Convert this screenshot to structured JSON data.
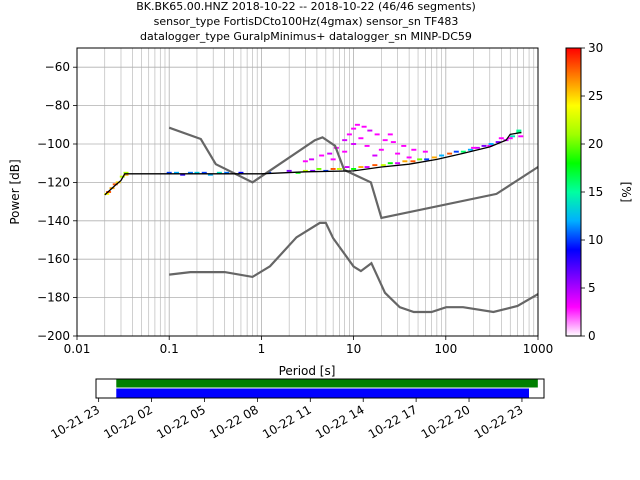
{
  "chart_data": [
    {
      "type": "heatmap",
      "title_lines": [
        "BK.BK65.00.HNZ   2018-10-22 -- 2018-10-22  (46/46 segments)",
        "sensor_type FortisDCto100Hz(4gmax) sensor_sn TF483",
        "datalogger_type GuralpMinimus+ datalogger_sn MINP-DC59"
      ],
      "xlabel": "Period [s]",
      "ylabel": "Power [dB]",
      "xscale": "log",
      "xlim": [
        0.01,
        1000
      ],
      "ylim": [
        -200,
        -50
      ],
      "grid": true,
      "x_tick_labels": [
        "0.01",
        "0.1",
        "1",
        "10",
        "100",
        "1000"
      ],
      "y_tick_values": [
        -200,
        -180,
        -160,
        -140,
        -120,
        -100,
        -80,
        -60
      ],
      "y_tick_labels": [
        "−200",
        "−180",
        "−160",
        "−140",
        "−120",
        "−100",
        "−80",
        "−60"
      ],
      "colorbar": {
        "label": "[%]",
        "range": [
          0,
          30
        ],
        "tick_values": [
          0,
          5,
          10,
          15,
          20,
          25,
          30
        ],
        "tick_labels": [
          "0",
          "5",
          "10",
          "15",
          "20",
          "25",
          "30"
        ],
        "colors": [
          "#ffffff",
          "#ff00ff",
          "#8000ff",
          "#0000ff",
          "#00b0ff",
          "#00ffa0",
          "#00ff00",
          "#a0ff00",
          "#ffff00",
          "#ff8000",
          "#ff0000"
        ]
      },
      "noise_models": {
        "color": "#666666",
        "high_noise_model": [
          [
            0.1,
            -91.5
          ],
          [
            0.22,
            -97.4
          ],
          [
            0.32,
            -110.5
          ],
          [
            0.8,
            -120
          ],
          [
            3.8,
            -98
          ],
          [
            4.6,
            -96.5
          ],
          [
            6.3,
            -101
          ],
          [
            7.9,
            -113.5
          ],
          [
            15.4,
            -120
          ],
          [
            20,
            -138.5
          ],
          [
            354.8,
            -126
          ],
          [
            1000,
            -112
          ]
        ],
        "low_noise_model": [
          [
            0.1,
            -168
          ],
          [
            0.17,
            -166.7
          ],
          [
            0.4,
            -166.7
          ],
          [
            0.8,
            -169.2
          ],
          [
            1.24,
            -163.7
          ],
          [
            2.4,
            -148.6
          ],
          [
            4.3,
            -141.1
          ],
          [
            5,
            -141.1
          ],
          [
            6,
            -149
          ],
          [
            10,
            -163.8
          ],
          [
            12,
            -166.2
          ],
          [
            15.6,
            -162.1
          ],
          [
            21.9,
            -177.5
          ],
          [
            31.6,
            -185
          ],
          [
            45,
            -187.5
          ],
          [
            70,
            -187.5
          ],
          [
            101,
            -185
          ],
          [
            154,
            -185
          ],
          [
            328,
            -187.5
          ],
          [
            600,
            -184.4
          ],
          [
            1000,
            -178.2
          ]
        ]
      },
      "mode_curve": {
        "color": "#000000",
        "points": [
          [
            0.02,
            -126.5
          ],
          [
            0.026,
            -121.5
          ],
          [
            0.03,
            -119
          ],
          [
            0.033,
            -115.5
          ],
          [
            0.1,
            -115.5
          ],
          [
            0.3,
            -115.5
          ],
          [
            1,
            -115.5
          ],
          [
            3,
            -114.5
          ],
          [
            10,
            -114
          ],
          [
            20,
            -112
          ],
          [
            40,
            -110.5
          ],
          [
            80,
            -108
          ],
          [
            150,
            -105
          ],
          [
            300,
            -101.5
          ],
          [
            450,
            -98
          ],
          [
            500,
            -95
          ],
          [
            660,
            -94
          ]
        ]
      },
      "psd_cells": [
        {
          "period": 0.021,
          "db": -126,
          "pct": 24
        },
        {
          "period": 0.022,
          "db": -125,
          "pct": 28
        },
        {
          "period": 0.024,
          "db": -123,
          "pct": 26
        },
        {
          "period": 0.026,
          "db": -121,
          "pct": 28
        },
        {
          "period": 0.028,
          "db": -120,
          "pct": 25
        },
        {
          "period": 0.031,
          "db": -117,
          "pct": 22
        },
        {
          "period": 0.034,
          "db": -116,
          "pct": 26
        },
        {
          "period": 0.034,
          "db": -115,
          "pct": 21
        },
        {
          "period": 0.1,
          "db": -115,
          "pct": 10
        },
        {
          "period": 0.12,
          "db": -115,
          "pct": 12
        },
        {
          "period": 0.14,
          "db": -116,
          "pct": 8
        },
        {
          "period": 0.17,
          "db": -115,
          "pct": 11
        },
        {
          "period": 0.2,
          "db": -115,
          "pct": 13
        },
        {
          "period": 0.24,
          "db": -115,
          "pct": 10
        },
        {
          "period": 0.28,
          "db": -116,
          "pct": 12
        },
        {
          "period": 0.35,
          "db": -115,
          "pct": 14
        },
        {
          "period": 0.42,
          "db": -115,
          "pct": 11
        },
        {
          "period": 0.6,
          "db": -115,
          "pct": 9
        },
        {
          "period": 1.2,
          "db": -115,
          "pct": 10
        },
        {
          "period": 2.0,
          "db": -114,
          "pct": 6
        },
        {
          "period": 2.5,
          "db": -115,
          "pct": 18
        },
        {
          "period": 3.0,
          "db": -114,
          "pct": 22
        },
        {
          "period": 3.6,
          "db": -114,
          "pct": 6
        },
        {
          "period": 4.2,
          "db": -113,
          "pct": 20
        },
        {
          "period": 5.0,
          "db": -114,
          "pct": 10
        },
        {
          "period": 6.0,
          "db": -113,
          "pct": 28
        },
        {
          "period": 7.0,
          "db": -113,
          "pct": 22
        },
        {
          "period": 8.5,
          "db": -112,
          "pct": 4
        },
        {
          "period": 10,
          "db": -113,
          "pct": 18
        },
        {
          "period": 12,
          "db": -112,
          "pct": 26
        },
        {
          "period": 14,
          "db": -112,
          "pct": 4
        },
        {
          "period": 17,
          "db": -111,
          "pct": 28
        },
        {
          "period": 21,
          "db": -111,
          "pct": 22
        },
        {
          "period": 25,
          "db": -110,
          "pct": 18
        },
        {
          "period": 30,
          "db": -110,
          "pct": 4
        },
        {
          "period": 36,
          "db": -109,
          "pct": 26
        },
        {
          "period": 44,
          "db": -109,
          "pct": 28
        },
        {
          "period": 52,
          "db": -108,
          "pct": 20
        },
        {
          "period": 62,
          "db": -108,
          "pct": 10
        },
        {
          "period": 75,
          "db": -107,
          "pct": 26
        },
        {
          "period": 90,
          "db": -106,
          "pct": 12
        },
        {
          "period": 110,
          "db": -105,
          "pct": 28
        },
        {
          "period": 130,
          "db": -104,
          "pct": 10
        },
        {
          "period": 155,
          "db": -104,
          "pct": 16
        },
        {
          "period": 185,
          "db": -103,
          "pct": 12
        },
        {
          "period": 220,
          "db": -102,
          "pct": 4
        },
        {
          "period": 260,
          "db": -101,
          "pct": 6
        },
        {
          "period": 310,
          "db": -100,
          "pct": 12
        },
        {
          "period": 370,
          "db": -99,
          "pct": 6
        },
        {
          "period": 450,
          "db": -98,
          "pct": 4
        },
        {
          "period": 530,
          "db": -96,
          "pct": 14
        },
        {
          "period": 620,
          "db": -94,
          "pct": 16
        },
        {
          "period": 620,
          "db": -93,
          "pct": 15
        },
        {
          "period": 3.0,
          "db": -109,
          "pct": 3
        },
        {
          "period": 3.5,
          "db": -108,
          "pct": 4
        },
        {
          "period": 4.5,
          "db": -106,
          "pct": 3
        },
        {
          "period": 5.5,
          "db": -105,
          "pct": 4
        },
        {
          "period": 6.5,
          "db": -102,
          "pct": 3
        },
        {
          "period": 8,
          "db": -98,
          "pct": 4
        },
        {
          "period": 9,
          "db": -95,
          "pct": 3
        },
        {
          "period": 10,
          "db": -92,
          "pct": 3
        },
        {
          "period": 11,
          "db": -90,
          "pct": 3
        },
        {
          "period": 13,
          "db": -91,
          "pct": 3
        },
        {
          "period": 15,
          "db": -93,
          "pct": 4
        },
        {
          "period": 18,
          "db": -95,
          "pct": 3
        },
        {
          "period": 22,
          "db": -98,
          "pct": 3
        },
        {
          "period": 27,
          "db": -99,
          "pct": 3
        },
        {
          "period": 35,
          "db": -101,
          "pct": 3
        },
        {
          "period": 45,
          "db": -103,
          "pct": 3
        },
        {
          "period": 12,
          "db": -97,
          "pct": 3
        },
        {
          "period": 14,
          "db": -101,
          "pct": 3
        },
        {
          "period": 20,
          "db": -103,
          "pct": 3
        },
        {
          "period": 8,
          "db": -104,
          "pct": 3
        },
        {
          "period": 6,
          "db": -108,
          "pct": 3
        },
        {
          "period": 17,
          "db": -106,
          "pct": 4
        },
        {
          "period": 30,
          "db": -105,
          "pct": 3
        },
        {
          "period": 10,
          "db": -100,
          "pct": 4
        },
        {
          "period": 25,
          "db": -95,
          "pct": 3
        },
        {
          "period": 40,
          "db": -107,
          "pct": 3
        },
        {
          "period": 60,
          "db": -104,
          "pct": 3
        },
        {
          "period": 200,
          "db": -102,
          "pct": 3
        },
        {
          "period": 300,
          "db": -101,
          "pct": 3
        },
        {
          "period": 400,
          "db": -97,
          "pct": 3
        },
        {
          "period": 500,
          "db": -97,
          "pct": 3
        },
        {
          "period": 650,
          "db": -96,
          "pct": 3
        }
      ]
    },
    {
      "type": "timeline",
      "x_tick_labels": [
        "10-21 23",
        "10-22 02",
        "10-22 05",
        "10-22 08",
        "10-22 11",
        "10-22 14",
        "10-22 17",
        "10-22 20",
        "10-22 23"
      ],
      "x_tick_hours": [
        23,
        26,
        29,
        32,
        35,
        38,
        41,
        44,
        47
      ],
      "xlim_hours": [
        22.85,
        48.25
      ],
      "bars": [
        {
          "color": "#008000",
          "start_hour": 24.0,
          "end_hour": 47.9
        },
        {
          "color": "#0000ff",
          "start_hour": 24.0,
          "end_hour": 47.4
        }
      ]
    }
  ]
}
